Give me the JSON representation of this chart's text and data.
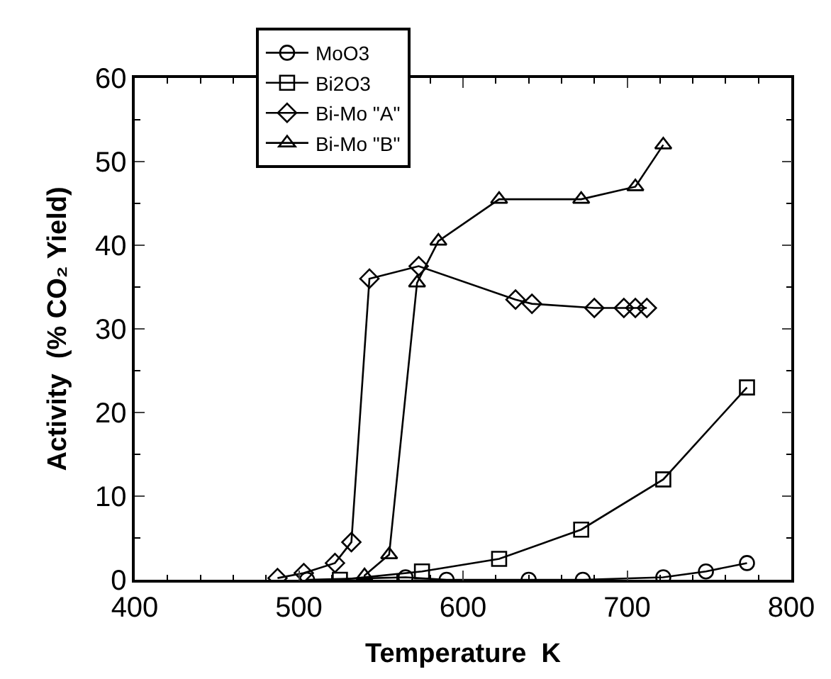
{
  "chart_data": {
    "type": "line",
    "xlabel": "Temperature  K",
    "ylabel": "Activity  (% CO₂ Yield)",
    "xlim": [
      400,
      800
    ],
    "xticks": [
      400,
      500,
      600,
      700,
      800
    ],
    "ylim": [
      0,
      60
    ],
    "yticks": [
      0,
      10,
      20,
      30,
      40,
      50,
      60
    ],
    "legend": "top left",
    "line_style": "solid",
    "series": [
      {
        "name": "MoO3",
        "color": "#000000",
        "marker": "circle",
        "x": [
          505,
          565,
          590,
          640,
          673,
          722,
          748,
          773
        ],
        "values": [
          0,
          0.3,
          0,
          0,
          0,
          0.3,
          1,
          2
        ]
      },
      {
        "name": "Bi2O3",
        "color": "#000000",
        "marker": "square",
        "x": [
          525,
          575,
          622,
          672,
          722,
          773
        ],
        "values": [
          0,
          1,
          2.5,
          6,
          12,
          23
        ]
      },
      {
        "name": "Bi-Mo \"A\"",
        "color": "#000000",
        "marker": "diamond",
        "x": [
          487,
          503,
          522,
          532,
          543,
          573,
          632,
          642,
          680,
          698,
          705,
          712
        ],
        "values": [
          0.2,
          0.8,
          2,
          4.5,
          36,
          37.5,
          33.5,
          33,
          32.5,
          32.5,
          32.5,
          32.5
        ]
      },
      {
        "name": "Bi-Mo \"B\"",
        "color": "#000000",
        "marker": "triangle",
        "x": [
          540,
          555,
          572,
          585,
          622,
          672,
          705,
          722
        ],
        "values": [
          0.5,
          3,
          35.5,
          40.5,
          45.5,
          45.5,
          47,
          52
        ]
      }
    ]
  }
}
